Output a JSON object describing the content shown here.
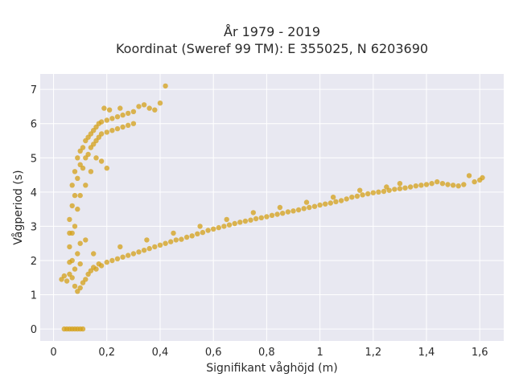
{
  "chart_data": {
    "type": "scatter",
    "title_line1": "År 1979 - 2019",
    "title_line2": "Koordinat (Sweref 99 TM): E 355025, N 6203690",
    "xlabel": "Signifikant våghöjd (m)",
    "ylabel": "Vågperiod (s)",
    "xlim": [
      -0.05,
      1.69
    ],
    "ylim": [
      -0.35,
      7.45
    ],
    "x_ticks": [
      0,
      0.2,
      0.4,
      0.6,
      0.8,
      1,
      1.2,
      1.4,
      1.6
    ],
    "x_tick_labels": [
      "0",
      "0,2",
      "0,4",
      "0,6",
      "0,8",
      "1",
      "1,2",
      "1,4",
      "1,6"
    ],
    "y_ticks": [
      0,
      1,
      2,
      3,
      4,
      5,
      6,
      7
    ],
    "y_tick_labels": [
      "0",
      "1",
      "2",
      "3",
      "4",
      "5",
      "6",
      "7"
    ],
    "grid": true,
    "colors": {
      "plot_bg": "#e8e8f1",
      "grid": "#ffffff",
      "marker": "#d4a017"
    },
    "series": [
      {
        "values_description_free": true,
        "points": [
          [
            0.04,
            0.0
          ],
          [
            0.05,
            0.0
          ],
          [
            0.06,
            0.0
          ],
          [
            0.07,
            0.0
          ],
          [
            0.08,
            0.0
          ],
          [
            0.09,
            0.0
          ],
          [
            0.1,
            0.0
          ],
          [
            0.11,
            0.0
          ],
          [
            0.03,
            1.45
          ],
          [
            0.04,
            1.55
          ],
          [
            0.05,
            1.4
          ],
          [
            0.06,
            1.6
          ],
          [
            0.07,
            1.5
          ],
          [
            0.08,
            1.25
          ],
          [
            0.09,
            1.1
          ],
          [
            0.1,
            1.2
          ],
          [
            0.11,
            1.35
          ],
          [
            0.12,
            1.45
          ],
          [
            0.13,
            1.6
          ],
          [
            0.14,
            1.7
          ],
          [
            0.15,
            1.8
          ],
          [
            0.16,
            1.75
          ],
          [
            0.17,
            1.9
          ],
          [
            0.18,
            1.85
          ],
          [
            0.2,
            1.95
          ],
          [
            0.22,
            2.0
          ],
          [
            0.24,
            2.05
          ],
          [
            0.26,
            2.1
          ],
          [
            0.28,
            2.15
          ],
          [
            0.3,
            2.2
          ],
          [
            0.32,
            2.25
          ],
          [
            0.34,
            2.3
          ],
          [
            0.36,
            2.35
          ],
          [
            0.38,
            2.4
          ],
          [
            0.4,
            2.45
          ],
          [
            0.42,
            2.5
          ],
          [
            0.44,
            2.55
          ],
          [
            0.46,
            2.6
          ],
          [
            0.48,
            2.62
          ],
          [
            0.5,
            2.68
          ],
          [
            0.52,
            2.72
          ],
          [
            0.54,
            2.78
          ],
          [
            0.56,
            2.82
          ],
          [
            0.58,
            2.88
          ],
          [
            0.6,
            2.92
          ],
          [
            0.62,
            2.96
          ],
          [
            0.64,
            3.0
          ],
          [
            0.66,
            3.04
          ],
          [
            0.68,
            3.08
          ],
          [
            0.7,
            3.12
          ],
          [
            0.72,
            3.15
          ],
          [
            0.74,
            3.18
          ],
          [
            0.76,
            3.22
          ],
          [
            0.78,
            3.25
          ],
          [
            0.8,
            3.28
          ],
          [
            0.82,
            3.32
          ],
          [
            0.84,
            3.35
          ],
          [
            0.86,
            3.38
          ],
          [
            0.88,
            3.42
          ],
          [
            0.9,
            3.45
          ],
          [
            0.92,
            3.48
          ],
          [
            0.94,
            3.52
          ],
          [
            0.96,
            3.55
          ],
          [
            0.98,
            3.58
          ],
          [
            1.0,
            3.62
          ],
          [
            1.02,
            3.65
          ],
          [
            1.04,
            3.68
          ],
          [
            1.06,
            3.72
          ],
          [
            1.08,
            3.75
          ],
          [
            1.1,
            3.8
          ],
          [
            1.12,
            3.85
          ],
          [
            1.14,
            3.88
          ],
          [
            1.16,
            3.92
          ],
          [
            1.18,
            3.95
          ],
          [
            1.2,
            3.98
          ],
          [
            1.22,
            4.0
          ],
          [
            1.24,
            4.02
          ],
          [
            1.26,
            4.05
          ],
          [
            1.28,
            4.08
          ],
          [
            1.3,
            4.1
          ],
          [
            1.32,
            4.12
          ],
          [
            1.34,
            4.15
          ],
          [
            1.36,
            4.18
          ],
          [
            1.38,
            4.2
          ],
          [
            1.4,
            4.22
          ],
          [
            1.42,
            4.25
          ],
          [
            1.44,
            4.3
          ],
          [
            1.46,
            4.25
          ],
          [
            1.48,
            4.22
          ],
          [
            1.5,
            4.2
          ],
          [
            1.52,
            4.18
          ],
          [
            1.54,
            4.22
          ],
          [
            1.56,
            4.48
          ],
          [
            1.58,
            4.3
          ],
          [
            1.6,
            4.35
          ],
          [
            1.61,
            4.42
          ],
          [
            1.3,
            4.25
          ],
          [
            1.25,
            4.15
          ],
          [
            1.15,
            4.05
          ],
          [
            1.05,
            3.85
          ],
          [
            0.95,
            3.7
          ],
          [
            0.85,
            3.55
          ],
          [
            0.75,
            3.4
          ],
          [
            0.65,
            3.2
          ],
          [
            0.55,
            3.0
          ],
          [
            0.45,
            2.8
          ],
          [
            0.35,
            2.6
          ],
          [
            0.25,
            2.4
          ],
          [
            0.15,
            2.2
          ],
          [
            0.1,
            1.9
          ],
          [
            0.08,
            1.75
          ],
          [
            0.06,
            1.95
          ],
          [
            0.06,
            3.2
          ],
          [
            0.06,
            2.8
          ],
          [
            0.07,
            3.6
          ],
          [
            0.07,
            4.2
          ],
          [
            0.08,
            3.9
          ],
          [
            0.08,
            4.6
          ],
          [
            0.09,
            5.0
          ],
          [
            0.09,
            4.4
          ],
          [
            0.1,
            4.8
          ],
          [
            0.1,
            5.2
          ],
          [
            0.11,
            5.3
          ],
          [
            0.11,
            4.7
          ],
          [
            0.12,
            5.5
          ],
          [
            0.12,
            5.0
          ],
          [
            0.13,
            5.6
          ],
          [
            0.13,
            5.1
          ],
          [
            0.14,
            5.7
          ],
          [
            0.14,
            5.3
          ],
          [
            0.15,
            5.8
          ],
          [
            0.15,
            5.4
          ],
          [
            0.16,
            5.9
          ],
          [
            0.16,
            5.5
          ],
          [
            0.17,
            6.0
          ],
          [
            0.17,
            5.6
          ],
          [
            0.18,
            6.05
          ],
          [
            0.18,
            5.7
          ],
          [
            0.2,
            6.1
          ],
          [
            0.2,
            5.75
          ],
          [
            0.22,
            6.15
          ],
          [
            0.22,
            5.8
          ],
          [
            0.24,
            6.2
          ],
          [
            0.24,
            5.85
          ],
          [
            0.26,
            6.25
          ],
          [
            0.26,
            5.9
          ],
          [
            0.28,
            6.3
          ],
          [
            0.28,
            5.95
          ],
          [
            0.3,
            6.35
          ],
          [
            0.3,
            6.0
          ],
          [
            0.32,
            6.5
          ],
          [
            0.34,
            6.55
          ],
          [
            0.36,
            6.45
          ],
          [
            0.38,
            6.4
          ],
          [
            0.4,
            6.6
          ],
          [
            0.42,
            7.1
          ],
          [
            0.19,
            6.45
          ],
          [
            0.21,
            6.4
          ],
          [
            0.25,
            6.45
          ],
          [
            0.2,
            4.7
          ],
          [
            0.18,
            4.9
          ],
          [
            0.16,
            5.0
          ],
          [
            0.14,
            4.6
          ],
          [
            0.12,
            4.2
          ],
          [
            0.1,
            3.9
          ],
          [
            0.09,
            3.5
          ],
          [
            0.08,
            3.0
          ],
          [
            0.07,
            2.8
          ],
          [
            0.06,
            2.4
          ],
          [
            0.09,
            2.2
          ],
          [
            0.07,
            2.0
          ],
          [
            0.1,
            2.5
          ],
          [
            0.12,
            2.6
          ]
        ]
      }
    ]
  }
}
